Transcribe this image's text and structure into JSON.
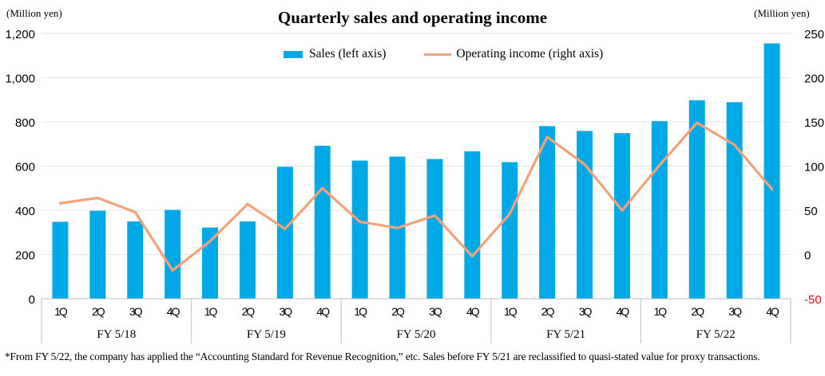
{
  "title": "Quarterly sales and operating income",
  "unit_left": "(Million yen)",
  "unit_right": "(Million yen)",
  "footnote": "*From FY 5/22, the company has applied the “Accounting Standard for Revenue Recognition,” etc. Sales before FY 5/21 are reclassified to quasi-stated value for proxy transactions.",
  "colors": {
    "bar": "#00a9e6",
    "line": "#f4a27a",
    "negative_tick": "#e8001c",
    "axis": "#bfbfbf"
  },
  "chart_data": {
    "type": "bar",
    "title": "Quarterly sales and operating income",
    "categories": [
      "1Q",
      "2Q",
      "3Q",
      "4Q",
      "1Q",
      "2Q",
      "3Q",
      "4Q",
      "1Q",
      "2Q",
      "3Q",
      "4Q",
      "1Q",
      "2Q",
      "3Q",
      "4Q",
      "1Q",
      "2Q",
      "3Q",
      "4Q"
    ],
    "groups": [
      "FY 5/18",
      "FY 5/19",
      "FY 5/20",
      "FY 5/21",
      "FY 5/22"
    ],
    "series": [
      {
        "name": "Sales (left axis)",
        "type": "bar",
        "axis": "left",
        "values": [
          348,
          398,
          350,
          402,
          322,
          350,
          597,
          692,
          625,
          643,
          632,
          667,
          618,
          781,
          759,
          749,
          803,
          898,
          889,
          1155
        ]
      },
      {
        "name": "Operating income (right axis)",
        "type": "line",
        "axis": "right",
        "values": [
          58,
          64,
          48,
          -18,
          15,
          57,
          29,
          75,
          37,
          30,
          44,
          -2,
          46,
          133,
          102,
          50,
          101,
          149,
          124,
          74
        ]
      }
    ],
    "y_left": {
      "ylim": [
        0,
        1200
      ],
      "ticks": [
        "0",
        "200",
        "400",
        "600",
        "800",
        "1,000",
        "1,200"
      ],
      "tick_values": [
        0,
        200,
        400,
        600,
        800,
        1000,
        1200
      ]
    },
    "y_right": {
      "ylim": [
        -50,
        250
      ],
      "ticks": [
        "-50",
        "0",
        "50",
        "100",
        "150",
        "200",
        "250"
      ],
      "tick_values": [
        -50,
        0,
        50,
        100,
        150,
        200,
        250
      ]
    },
    "legend_position": "top",
    "grid": true
  }
}
